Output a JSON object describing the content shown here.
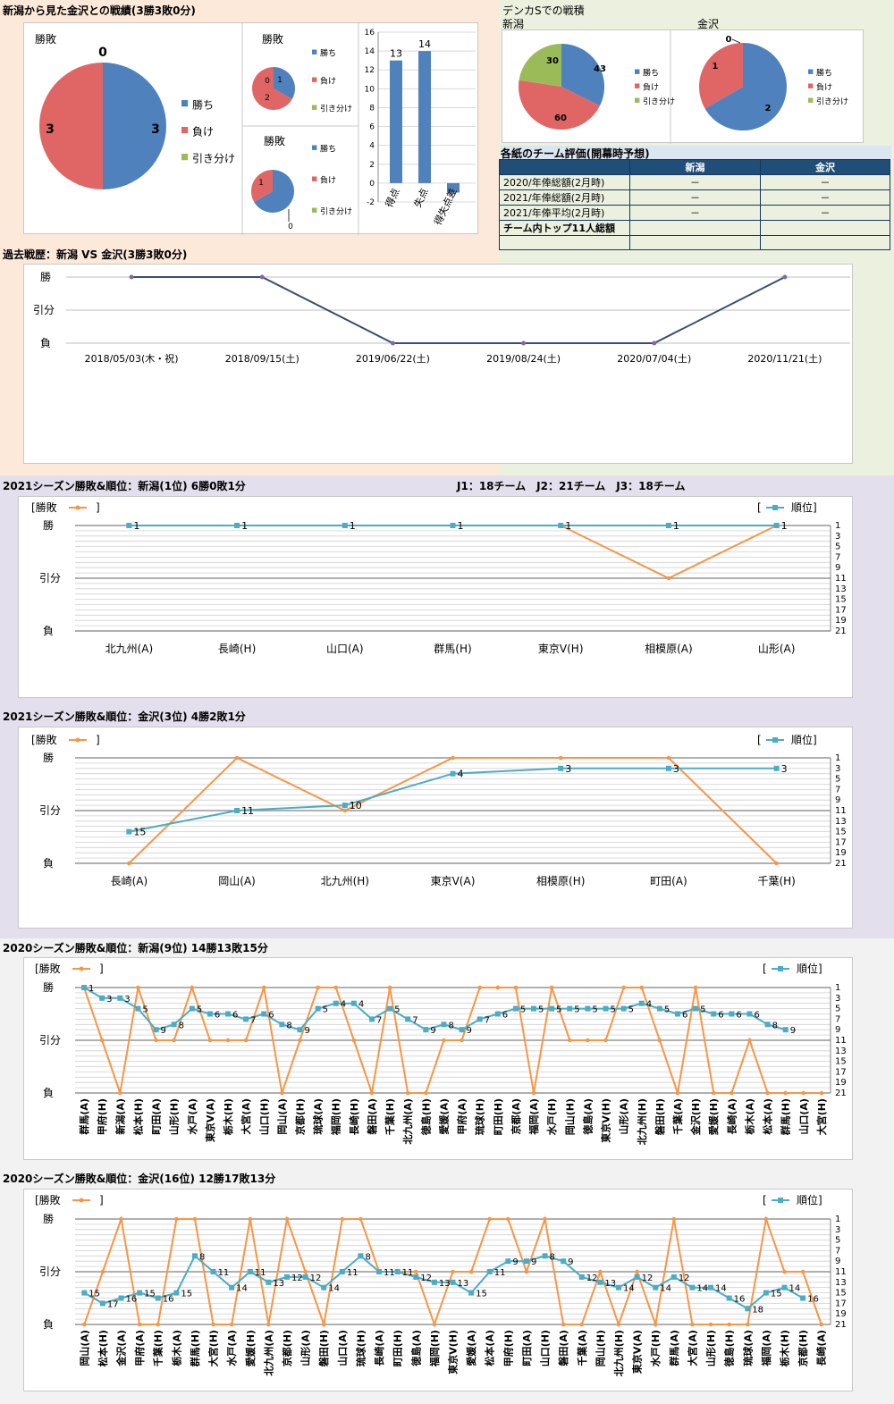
{
  "colors": {
    "win": "#4f81bd",
    "lose": "#e06666",
    "draw": "#9bbb59",
    "rank": "#4bacc6",
    "wl": "#f79646",
    "h2h": "#3a4e6e"
  },
  "h2h_title": "新潟から見た金沢との戦績(3勝3敗0分)",
  "denka_title": "デンカSでの戦積",
  "pie_legend": [
    "勝ち",
    "負け",
    "引き分け"
  ],
  "pie_legend_cut": "引き分け",
  "axis_labels": {
    "win": "勝",
    "draw": "引分",
    "lose": "負"
  },
  "series_labels": {
    "wl": "勝敗",
    "rank": "順位"
  },
  "rank_ticks": [
    "1",
    "3",
    "5",
    "7",
    "9",
    "11",
    "13",
    "15",
    "17",
    "19",
    "21"
  ],
  "eval_table": {
    "title": "各紙のチーム評価(開幕時予想)",
    "headers": [
      "",
      "新潟",
      "金沢"
    ],
    "rows": [
      [
        "2020/年俸総額(2月時)",
        "－",
        "－"
      ],
      [
        "2021/年俸総額(2月時)",
        "－",
        "－"
      ],
      [
        "2021/年俸平均(2月時)",
        "－",
        "－"
      ],
      [
        "チーム内トップ11人総額",
        "",
        ""
      ],
      [
        "",
        "",
        ""
      ]
    ]
  },
  "chart_data": [
    {
      "type": "pie",
      "title": "勝敗",
      "categories": [
        "勝ち",
        "負け",
        "引き分け"
      ],
      "values": [
        3,
        3,
        0
      ]
    },
    {
      "type": "pie",
      "title": "勝敗",
      "categories": [
        "勝ち",
        "負け",
        "引き分け"
      ],
      "values": [
        1,
        2,
        0
      ]
    },
    {
      "type": "pie",
      "title": "勝敗",
      "categories": [
        "勝ち",
        "負け",
        "引き分け"
      ],
      "values": [
        2,
        1,
        0
      ]
    },
    {
      "type": "bar",
      "categories": [
        "得点",
        "失点",
        "得失点差"
      ],
      "values": [
        13,
        14,
        -1
      ],
      "ylim": [
        -2,
        16
      ],
      "yticks": [
        -2,
        0,
        2,
        4,
        6,
        8,
        10,
        12,
        14,
        16
      ]
    },
    {
      "type": "pie",
      "title": "新潟",
      "categories": [
        "勝ち",
        "負け",
        "引き分け"
      ],
      "values": [
        43,
        60,
        30
      ]
    },
    {
      "type": "pie",
      "title": "金沢",
      "categories": [
        "勝ち",
        "負け",
        "引き分け"
      ],
      "values": [
        2,
        1,
        0
      ]
    },
    {
      "type": "line",
      "title": "過去戦歴：新潟 VS 金沢(3勝3敗0分)",
      "categories": [
        "2018/05/03(木・祝)",
        "2018/09/15(土)",
        "2019/06/22(土)",
        "2019/08/24(土)",
        "2020/07/04(土)",
        "2020/11/21(土)"
      ],
      "series": [
        {
          "values": [
            "W",
            "W",
            "L",
            "L",
            "L",
            "W"
          ]
        }
      ]
    },
    {
      "type": "line",
      "title": "2021シーズン勝敗&順位：新潟(1位) 6勝0敗1分",
      "note": "J1：18チーム　J2：21チーム　J3：18チーム",
      "categories": [
        "北九州(A)",
        "長崎(H)",
        "山口(A)",
        "群馬(H)",
        "東京V(H)",
        "相模原(A)",
        "山形(A)"
      ],
      "series": [
        {
          "name": "勝敗",
          "values": [
            "W",
            "W",
            "W",
            "W",
            "W",
            "D",
            "W"
          ]
        },
        {
          "name": "順位",
          "values": [
            1,
            1,
            1,
            1,
            1,
            1,
            1
          ]
        }
      ]
    },
    {
      "type": "line",
      "title": "2021シーズン勝敗&順位：金沢(3位) 4勝2敗1分",
      "categories": [
        "長崎(A)",
        "岡山(A)",
        "北九州(H)",
        "東京V(A)",
        "相模原(H)",
        "町田(A)",
        "千葉(H)"
      ],
      "series": [
        {
          "name": "勝敗",
          "values": [
            "L",
            "W",
            "D",
            "W",
            "W",
            "W",
            "L"
          ]
        },
        {
          "name": "順位",
          "values": [
            15,
            11,
            10,
            4,
            3,
            3,
            3
          ]
        }
      ]
    },
    {
      "type": "line",
      "title": "2020シーズン勝敗&順位：新潟(9位) 14勝13敗15分",
      "categories": [
        "群馬(A)",
        "甲府(H)",
        "新潟(A)",
        "松本(H)",
        "町田(A)",
        "山形(H)",
        "水戸(A)",
        "東京V(A)",
        "栃木(H)",
        "大宮(A)",
        "山口(H)",
        "岡山(A)",
        "京都(H)",
        "琉球(A)",
        "福岡(H)",
        "長崎(H)",
        "磐田(A)",
        "千葉(H)",
        "北九州(A)",
        "徳島(H)",
        "愛媛(A)",
        "甲府(A)",
        "琉球(H)",
        "町田(H)",
        "京都(A)",
        "福岡(A)",
        "水戸(H)",
        "岡山(H)",
        "徳島(A)",
        "東京V(H)",
        "山形(A)",
        "北九州(H)",
        "磐田(H)",
        "千葉(A)",
        "金沢(H)",
        "愛媛(H)",
        "長崎(A)",
        "栃木(A)",
        "松本(A)",
        "群馬(H)",
        "山口(A)",
        "大宮(H)"
      ],
      "series": [
        {
          "name": "勝敗",
          "values": [
            "W",
            "D",
            "L",
            "W",
            "D",
            "D",
            "W",
            "D",
            "D",
            "D",
            "W",
            "L",
            "D",
            "W",
            "W",
            "D",
            "L",
            "W",
            "L",
            "L",
            "D",
            "D",
            "W",
            "W",
            "W",
            "L",
            "W",
            "D",
            "D",
            "D",
            "W",
            "W",
            "D",
            "L",
            "W",
            "L",
            "L",
            "D",
            "L",
            "L",
            "L",
            "L"
          ]
        },
        {
          "name": "順位",
          "values": [
            1,
            3,
            3,
            5,
            9,
            8,
            5,
            6,
            6,
            7,
            6,
            8,
            9,
            5,
            4,
            4,
            7,
            5,
            7,
            9,
            8,
            9,
            7,
            6,
            5,
            5,
            5,
            5,
            5,
            5,
            5,
            4,
            5,
            6,
            5,
            6,
            6,
            6,
            8,
            9,
            null,
            null
          ]
        }
      ]
    },
    {
      "type": "line",
      "title": "2020シーズン勝敗&順位：金沢(16位) 12勝17敗13分",
      "categories": [
        "岡山(A)",
        "松本(H)",
        "金沢(A)",
        "甲府(A)",
        "千葉(H)",
        "栃木(A)",
        "群馬(H)",
        "大宮(H)",
        "水戸(A)",
        "愛媛(H)",
        "北九州(A)",
        "京都(H)",
        "山形(A)",
        "磐田(H)",
        "山口(A)",
        "琉球(H)",
        "長崎(A)",
        "町田(H)",
        "徳島(A)",
        "福岡(H)",
        "東京V(H)",
        "愛媛(A)",
        "松本(A)",
        "甲府(H)",
        "町田(A)",
        "山口(H)",
        "磐田(A)",
        "千葉(A)",
        "岡山(H)",
        "北九州(H)",
        "東京V(A)",
        "水戸(H)",
        "群馬(A)",
        "大宮(A)",
        "山形(H)",
        "徳島(H)",
        "琉球(A)",
        "福岡(A)",
        "栃木(H)",
        "京都(H)",
        "長崎(A)"
      ],
      "series": [
        {
          "name": "勝敗",
          "values": [
            "L",
            "D",
            "W",
            "L",
            "L",
            "W",
            "W",
            "L",
            "L",
            "W",
            "L",
            "W",
            "D",
            "L",
            "W",
            "W",
            "D",
            "D",
            "D",
            "L",
            "D",
            "D",
            "W",
            "W",
            "D",
            "W",
            "L",
            "L",
            "D",
            "L",
            "D",
            "L",
            "W",
            "L",
            "L",
            "L",
            "L",
            "W",
            "D",
            "D",
            "L"
          ]
        },
        {
          "name": "順位",
          "values": [
            15,
            17,
            16,
            15,
            16,
            15,
            8,
            11,
            14,
            11,
            13,
            12,
            12,
            14,
            11,
            8,
            11,
            11,
            12,
            13,
            13,
            15,
            11,
            9,
            9,
            8,
            9,
            12,
            13,
            14,
            12,
            14,
            12,
            14,
            14,
            16,
            18,
            15,
            14,
            16,
            null
          ]
        }
      ]
    }
  ]
}
